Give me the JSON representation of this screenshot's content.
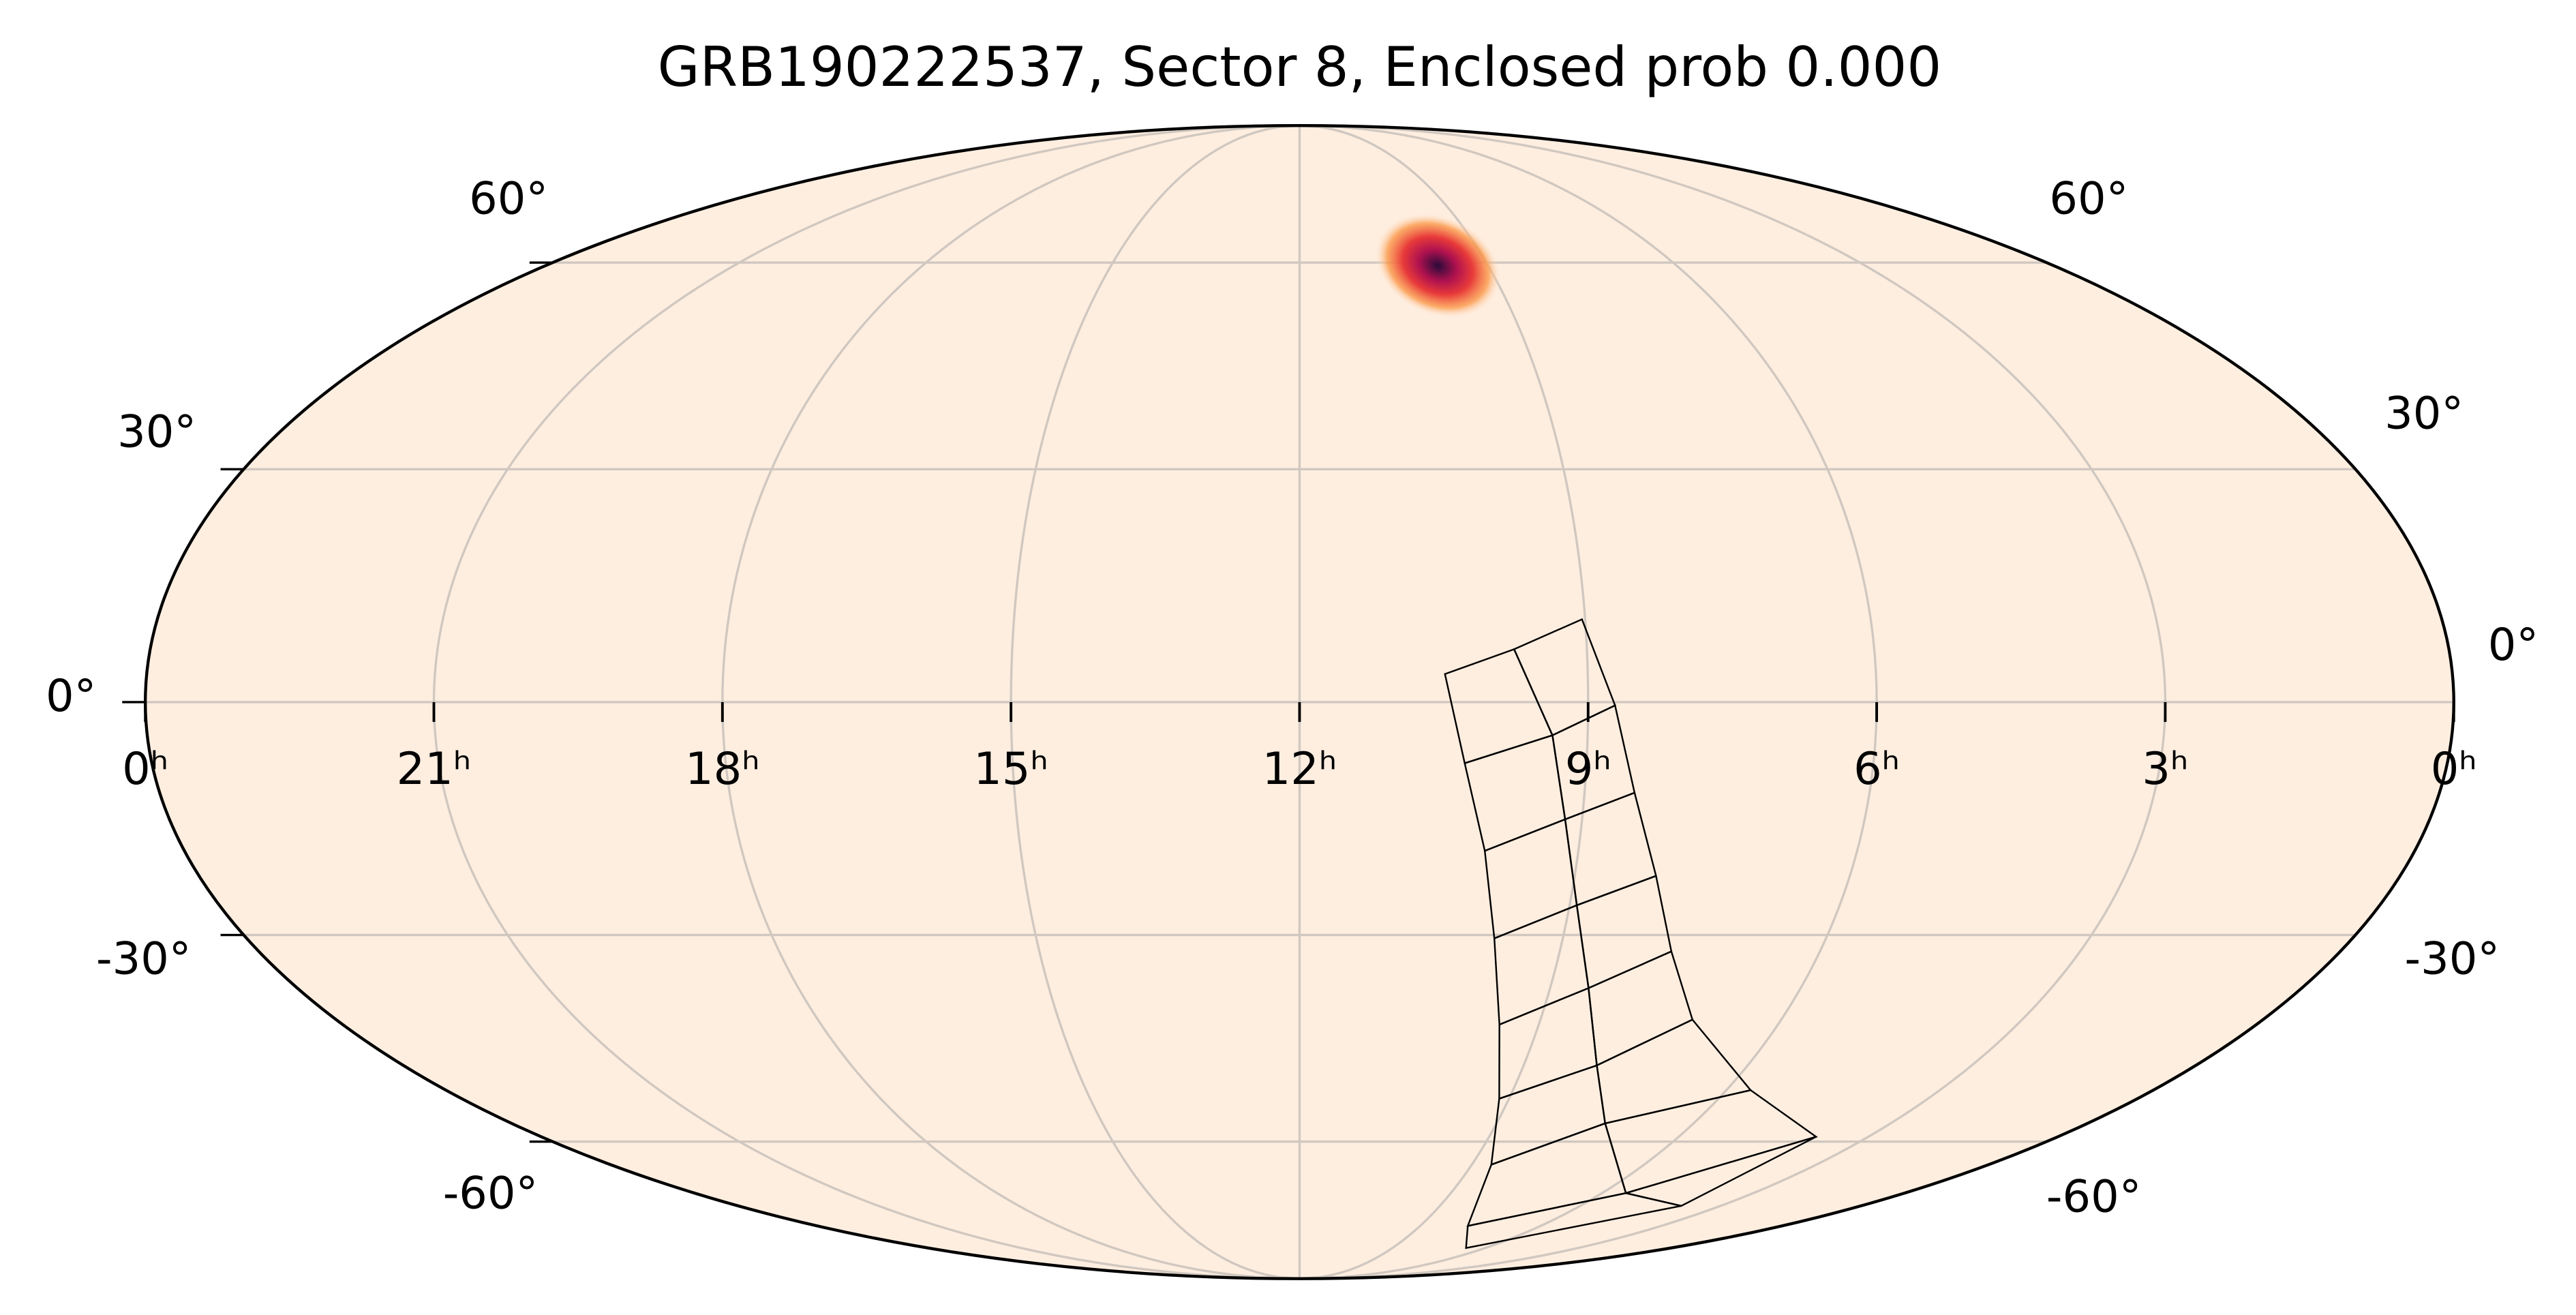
{
  "chart_data": {
    "type": "skymap",
    "title": "GRB190222537, Sector 8, Enclosed prob 0.000",
    "xlim": [
      24,
      0
    ],
    "ylim": [
      -90,
      90
    ],
    "xticks": [
      {
        "value": 24,
        "label": "0ʰ"
      },
      {
        "value": 21,
        "label": "21ʰ"
      },
      {
        "value": 18,
        "label": "18ʰ"
      },
      {
        "value": 15,
        "label": "15ʰ"
      },
      {
        "value": 12,
        "label": "12ʰ"
      },
      {
        "value": 9,
        "label": "9ʰ"
      },
      {
        "value": 6,
        "label": "6ʰ"
      },
      {
        "value": 3,
        "label": "3ʰ"
      },
      {
        "value": 0,
        "label": "0ʰ"
      }
    ],
    "yticks": [
      {
        "value": 60,
        "label": "60°"
      },
      {
        "value": 30,
        "label": "30°"
      },
      {
        "value": 0,
        "label": "0°"
      },
      {
        "value": -30,
        "label": "-30°"
      },
      {
        "value": -60,
        "label": "-60°"
      }
    ],
    "grid": true,
    "grid_color": "#d0c8c0",
    "background_color": "#feeee0",
    "localization": {
      "ra": 147,
      "dec": 59.5,
      "color": "#d0204a"
    },
    "footprint_color": "#000000",
    "footprint": [
      [
        [
          157.3,
          3.55
        ],
        [
          146.4,
          6.7
        ],
        [
          135.5,
          10.5
        ]
      ],
      [
        [
          154.1,
          -7.74
        ],
        [
          140.5,
          -4.2
        ],
        [
          130.8,
          -0.42
        ]
      ],
      [
        [
          150.1,
          -18.95
        ],
        [
          137.7,
          -14.9
        ],
        [
          127.1,
          -11.5
        ]
      ],
      [
        [
          146.7,
          -30.45
        ],
        [
          133.8,
          -26.05
        ],
        [
          121.7,
          -22.2
        ]
      ],
      [
        [
          142.4,
          -42.3
        ],
        [
          128.1,
          -37.2
        ],
        [
          115.7,
          -32.2
        ]
      ],
      [
        [
          137.1,
          -53.2
        ],
        [
          120.3,
          -48.2
        ],
        [
          106.6,
          -41.6
        ]
      ],
      [
        [
          129.9,
          -63.85
        ],
        [
          110.2,
          -57.05
        ],
        [
          84.9,
          -51.9
        ]
      ],
      [
        [
          117.2,
          -75.3
        ],
        [
          82.9,
          -68.9
        ],
        [
          57.4,
          -59.2
        ]
      ],
      [
        [
          99.3,
          -80.2
        ],
        [
          57.6,
          -71.3
        ],
        [
          57.4,
          -59.2
        ]
      ]
    ]
  }
}
